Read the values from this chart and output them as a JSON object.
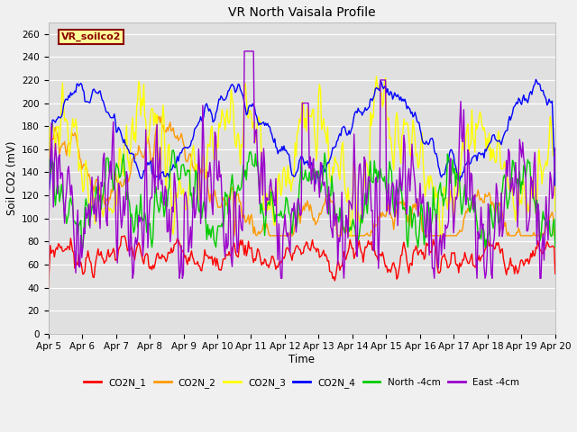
{
  "title": "VR North Vaisala Profile",
  "xlabel": "Time",
  "ylabel": "Soil CO2 (mV)",
  "ylim": [
    0,
    270
  ],
  "yticks": [
    0,
    20,
    40,
    60,
    80,
    100,
    120,
    140,
    160,
    180,
    200,
    220,
    240,
    260
  ],
  "x_labels": [
    "Apr 5",
    "Apr 6",
    "Apr 7",
    "Apr 8",
    "Apr 9",
    "Apr 10",
    "Apr 11",
    "Apr 12",
    "Apr 13",
    "Apr 14",
    "Apr 15",
    "Apr 16",
    "Apr 17",
    "Apr 18",
    "Apr 19",
    "Apr 20"
  ],
  "annotation_text": "VR_soilco2",
  "annotation_box_color": "#ffff99",
  "annotation_text_color": "#8b0000",
  "fig_bg_color": "#f0f0f0",
  "plot_bg_color": "#e0e0e0",
  "grid_color": "#ffffff",
  "series_colors": {
    "CO2N_1": "#ff0000",
    "CO2N_2": "#ff9900",
    "CO2N_3": "#ffff00",
    "CO2N_4": "#0000ff",
    "North -4cm": "#00cc00",
    "East -4cm": "#9900cc"
  },
  "lw": 1.0,
  "n_points": 500,
  "seed": 7
}
